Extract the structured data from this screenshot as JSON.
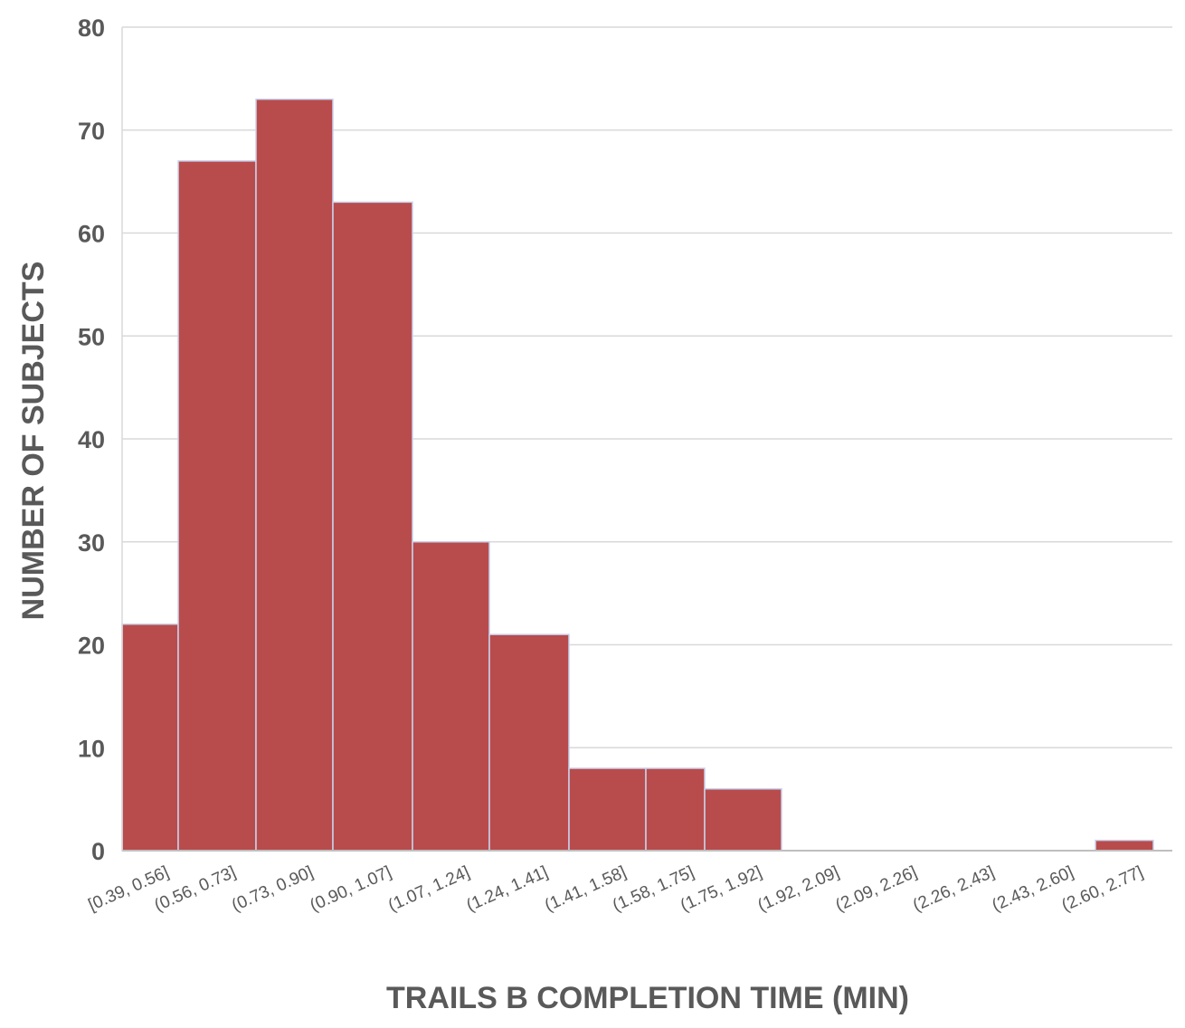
{
  "chart_data": {
    "type": "bar",
    "title": "",
    "xlabel": "TRAILS B COMPLETION TIME (MIN)",
    "ylabel": "NUMBER OF SUBJECTS",
    "categories": [
      "[0.39, 0.56]",
      "(0.56, 0.73]",
      "(0.73, 0.90]",
      "(0.90, 1.07]",
      "(1.07, 1.24]",
      "(1.24, 1.41]",
      "(1.41, 1.58]",
      "(1.58, 1.75]",
      "(1.75, 1.92]",
      "(1.92, 2.09]",
      "(2.09, 2.26]",
      "(2.26, 2.43]",
      "(2.43, 2.60]",
      "(2.60, 2.77]"
    ],
    "values": [
      22,
      67,
      73,
      63,
      30,
      21,
      8,
      8,
      6,
      0,
      0,
      0,
      0,
      1
    ],
    "ylim": [
      0,
      80
    ],
    "yticks": [
      0,
      10,
      20,
      30,
      40,
      50,
      60,
      70,
      80
    ],
    "grid": true,
    "legend": "none",
    "bar_color": "#b84c4c",
    "bar_edge_color": "#c9d3ee"
  }
}
